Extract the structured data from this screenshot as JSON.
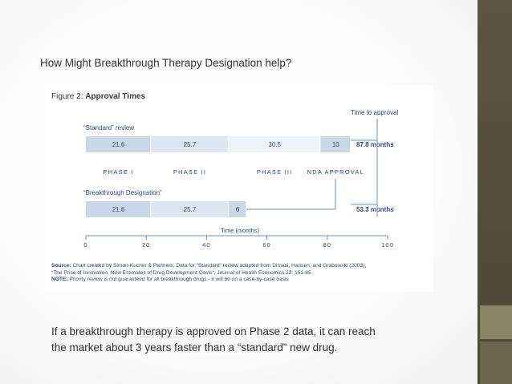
{
  "slide": {
    "heading": "How Might Breakthrough Therapy Designation help?",
    "caption_line1": "If a breakthrough therapy is approved on Phase 2 data, it can reach",
    "caption_line2": "the market about 3 years faster than a “standard” new drug."
  },
  "figure": {
    "title_prefix": "Figure 2: ",
    "title_bold": "Approval Times",
    "source_label": "Source:",
    "source_text": " Chart created by Simon-Kucher & Partners; Data for “Standard” review adapted from Dimasi, Hansen, and Grabowski (2003),",
    "source_text2": "“The Price of Innovation: New Estimates of Drug Development Costs”, Journal of Health Economics 22: 151-85",
    "note_label": "NOTE:",
    "note_text": " Priority review is not guaranteed for all breakthrough drugs - it will be on a case-by-case basis"
  },
  "chart_data": {
    "type": "bar",
    "orientation": "horizontal",
    "stacked": true,
    "title": "Approval Times",
    "xlabel": "Time (months)",
    "xlim": [
      0,
      100
    ],
    "xticks": [
      0,
      20,
      40,
      60,
      80,
      100
    ],
    "time_to_approval_label": "Time to approval",
    "phase_labels": [
      "PHASE I",
      "PHASE II",
      "PHASE III",
      "NDA APPROVAL"
    ],
    "series": [
      {
        "name": "“Standard” review",
        "segments": [
          {
            "phase": "PHASE I",
            "value": 21.6,
            "label": "21.6",
            "color": "#c9d7e7"
          },
          {
            "phase": "PHASE II",
            "value": 25.7,
            "label": "25.7",
            "color": "#dde7f1"
          },
          {
            "phase": "PHASE III",
            "value": 30.5,
            "label": "30.5",
            "color": "#edf2f8"
          },
          {
            "phase": "NDA APPROVAL",
            "value": 10,
            "label": "10",
            "color": "#c9d7e7"
          }
        ],
        "total_label": "87.8 months"
      },
      {
        "name": "“Breakthrough Designation”",
        "segments": [
          {
            "phase": "PHASE I",
            "value": 21.6,
            "label": "21.6",
            "color": "#c9d7e7"
          },
          {
            "phase": "PHASE II",
            "value": 25.7,
            "label": "25.7",
            "color": "#dde7f1"
          },
          {
            "phase": "NDA APPROVAL",
            "value": 6,
            "label": "6",
            "color": "#c9d7e7"
          }
        ],
        "total_label": "53.3 months"
      }
    ],
    "colors": {
      "bar_text": "#3a4a62",
      "label_text": "#2e4c84",
      "axis": "#6f8fbf",
      "connector": "#6f8fbf"
    }
  }
}
